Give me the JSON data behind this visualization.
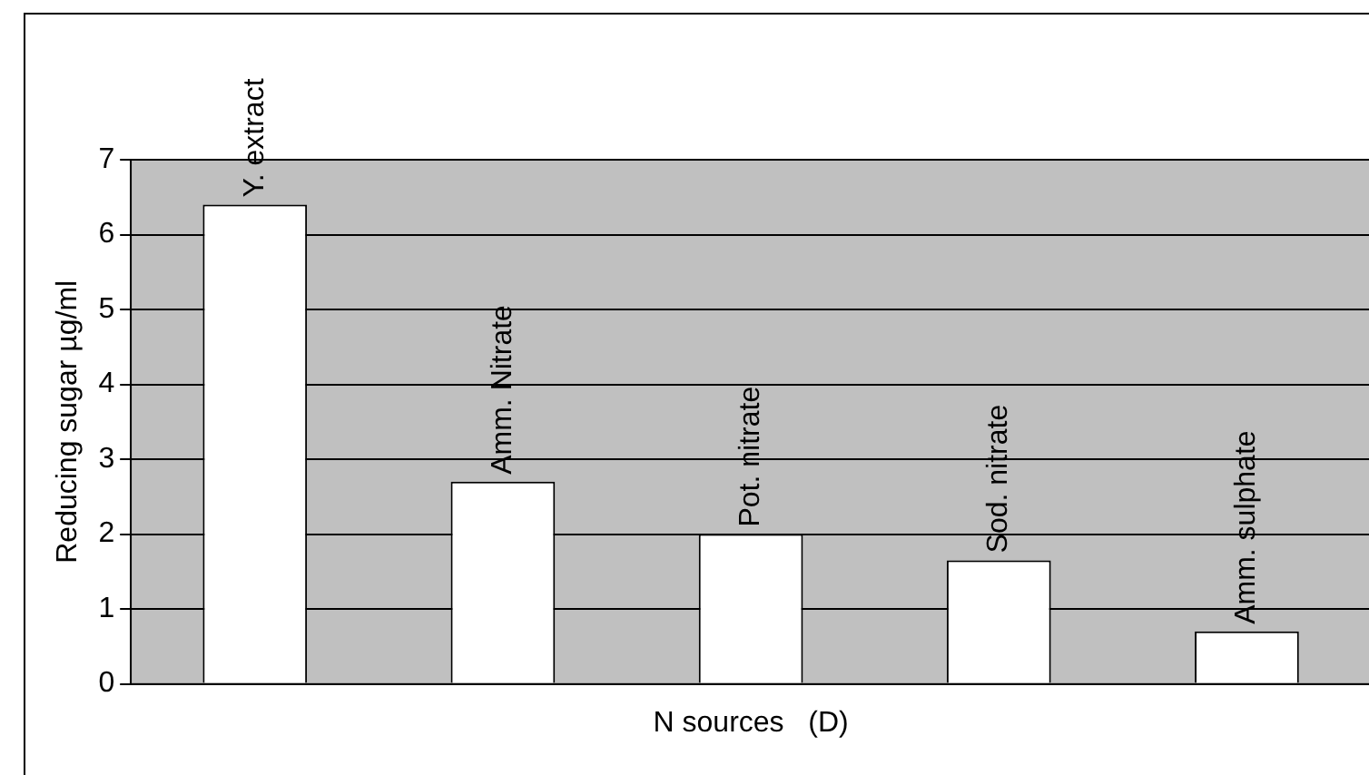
{
  "chart_data": {
    "type": "bar",
    "categories": [
      "Y. extract",
      "Amm. Nitrate",
      "Pot. nitrate",
      "Sod. nitrate",
      "Amm. sulphate"
    ],
    "values": [
      6.4,
      2.7,
      2.0,
      1.65,
      0.7
    ],
    "color": "#ffffff",
    "xlabel": "N sources   (D)",
    "ylabel": "Reducing sugar µg/ml",
    "ylim": [
      0,
      7
    ],
    "yticks": [
      0,
      1,
      2,
      3,
      4,
      5,
      6,
      7
    ],
    "grid": "y",
    "legend": false
  }
}
